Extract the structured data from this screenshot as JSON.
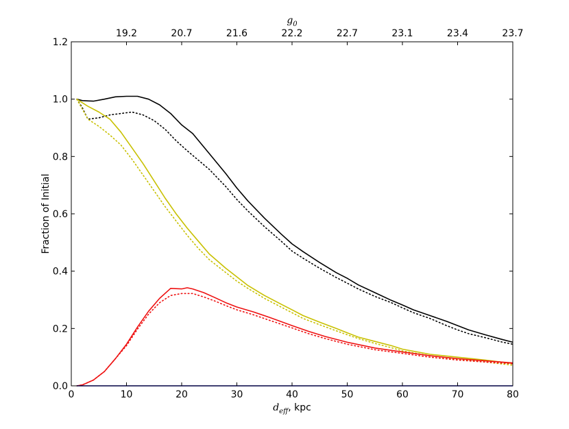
{
  "chart_data": {
    "type": "line",
    "title": "",
    "xlabel": "d_eff, kpc",
    "xlabel_parts": {
      "symbol": "d",
      "subscript": "eff",
      "suffix": ", kpc"
    },
    "ylabel": "Fraction of Initial",
    "top_axis_label": "g_0",
    "top_axis_parts": {
      "symbol": "g",
      "subscript": "0"
    },
    "xlim": [
      0,
      80
    ],
    "ylim": [
      0,
      1.2
    ],
    "x_ticks": [
      0,
      10,
      20,
      30,
      40,
      50,
      60,
      70,
      80
    ],
    "x_tick_labels": [
      "0",
      "10",
      "20",
      "30",
      "40",
      "50",
      "60",
      "70",
      "80"
    ],
    "y_ticks": [
      0.0,
      0.2,
      0.4,
      0.6,
      0.8,
      1.0,
      1.2
    ],
    "y_tick_labels": [
      "0.0",
      "0.2",
      "0.4",
      "0.6",
      "0.8",
      "1.0",
      "1.2"
    ],
    "top_ticks_x": [
      10,
      20,
      30,
      40,
      50,
      60,
      70,
      80
    ],
    "top_tick_labels": [
      "19.2",
      "20.7",
      "21.6",
      "22.2",
      "22.7",
      "23.1",
      "23.4",
      "23.7"
    ],
    "grid": false,
    "legend": "none",
    "series": [
      {
        "color": "#000000",
        "style": "solid",
        "x": [
          1,
          2,
          4,
          6,
          8,
          10,
          12,
          14,
          16,
          18,
          20,
          22,
          25,
          28,
          30,
          32,
          35,
          38,
          40,
          42,
          45,
          48,
          50,
          52,
          55,
          58,
          60,
          62,
          65,
          68,
          70,
          72,
          75,
          78,
          80
        ],
        "y": [
          1.0,
          0.995,
          0.993,
          1.0,
          1.008,
          1.01,
          1.01,
          1.0,
          0.98,
          0.95,
          0.91,
          0.88,
          0.81,
          0.74,
          0.69,
          0.645,
          0.585,
          0.53,
          0.495,
          0.468,
          0.43,
          0.395,
          0.375,
          0.352,
          0.325,
          0.298,
          0.282,
          0.265,
          0.245,
          0.225,
          0.21,
          0.195,
          0.178,
          0.162,
          0.152
        ]
      },
      {
        "color": "#000000",
        "style": "dotted",
        "x": [
          1,
          2,
          3,
          5,
          7,
          9,
          11,
          13,
          15,
          17,
          19,
          21,
          25,
          28,
          30,
          32,
          35,
          38,
          40,
          42,
          45,
          48,
          50,
          52,
          55,
          58,
          60,
          62,
          65,
          68,
          70,
          72,
          75,
          78,
          80
        ],
        "y": [
          1.0,
          0.97,
          0.93,
          0.935,
          0.945,
          0.95,
          0.955,
          0.945,
          0.925,
          0.895,
          0.855,
          0.82,
          0.755,
          0.695,
          0.65,
          0.61,
          0.555,
          0.505,
          0.47,
          0.445,
          0.41,
          0.378,
          0.358,
          0.338,
          0.312,
          0.29,
          0.272,
          0.255,
          0.235,
          0.21,
          0.195,
          0.182,
          0.168,
          0.153,
          0.145
        ]
      },
      {
        "color": "#c8c000",
        "style": "solid",
        "x": [
          1,
          3,
          5,
          7,
          9,
          11,
          13,
          15,
          17,
          19,
          21,
          23,
          25,
          28,
          30,
          32,
          35,
          38,
          40,
          42,
          45,
          48,
          50,
          52,
          55,
          58,
          60,
          65,
          70,
          75,
          80
        ],
        "y": [
          1.0,
          0.975,
          0.955,
          0.93,
          0.885,
          0.83,
          0.775,
          0.715,
          0.655,
          0.6,
          0.55,
          0.505,
          0.46,
          0.41,
          0.38,
          0.35,
          0.315,
          0.285,
          0.265,
          0.245,
          0.222,
          0.2,
          0.185,
          0.17,
          0.155,
          0.14,
          0.128,
          0.11,
          0.1,
          0.09,
          0.078
        ]
      },
      {
        "color": "#c8c000",
        "style": "dotted",
        "x": [
          1,
          3,
          5,
          7,
          9,
          11,
          13,
          15,
          17,
          19,
          21,
          23,
          25,
          28,
          30,
          32,
          35,
          38,
          40,
          42,
          45,
          48,
          50,
          52,
          55,
          58,
          60,
          65,
          70,
          75,
          80
        ],
        "y": [
          1.0,
          0.93,
          0.905,
          0.875,
          0.84,
          0.79,
          0.735,
          0.68,
          0.625,
          0.575,
          0.525,
          0.48,
          0.44,
          0.395,
          0.365,
          0.34,
          0.305,
          0.275,
          0.255,
          0.235,
          0.213,
          0.192,
          0.178,
          0.165,
          0.148,
          0.133,
          0.122,
          0.105,
          0.093,
          0.083,
          0.072
        ]
      },
      {
        "color": "#ee1111",
        "style": "solid",
        "x": [
          1,
          2,
          4,
          6,
          8,
          10,
          12,
          14,
          16,
          18,
          20,
          21,
          22,
          24,
          26,
          28,
          30,
          33,
          36,
          40,
          43,
          46,
          50,
          55,
          60,
          65,
          70,
          75,
          80
        ],
        "y": [
          0.0,
          0.003,
          0.02,
          0.05,
          0.095,
          0.145,
          0.205,
          0.26,
          0.305,
          0.34,
          0.338,
          0.342,
          0.338,
          0.325,
          0.308,
          0.29,
          0.275,
          0.258,
          0.238,
          0.21,
          0.19,
          0.172,
          0.152,
          0.132,
          0.118,
          0.105,
          0.095,
          0.087,
          0.08
        ]
      },
      {
        "color": "#ee1111",
        "style": "dotted",
        "x": [
          1,
          2,
          4,
          6,
          8,
          10,
          12,
          14,
          16,
          18,
          20,
          22,
          24,
          26,
          28,
          30,
          33,
          36,
          40,
          43,
          46,
          50,
          55,
          60,
          65,
          70,
          75,
          80
        ],
        "y": [
          0.0,
          0.003,
          0.02,
          0.05,
          0.095,
          0.14,
          0.198,
          0.25,
          0.29,
          0.315,
          0.322,
          0.322,
          0.31,
          0.296,
          0.28,
          0.265,
          0.248,
          0.228,
          0.202,
          0.182,
          0.165,
          0.145,
          0.126,
          0.113,
          0.1,
          0.09,
          0.083,
          0.077
        ]
      },
      {
        "color": "#0000cc",
        "style": "solid",
        "x": [
          1,
          80
        ],
        "y": [
          0.0,
          0.0
        ]
      }
    ]
  }
}
